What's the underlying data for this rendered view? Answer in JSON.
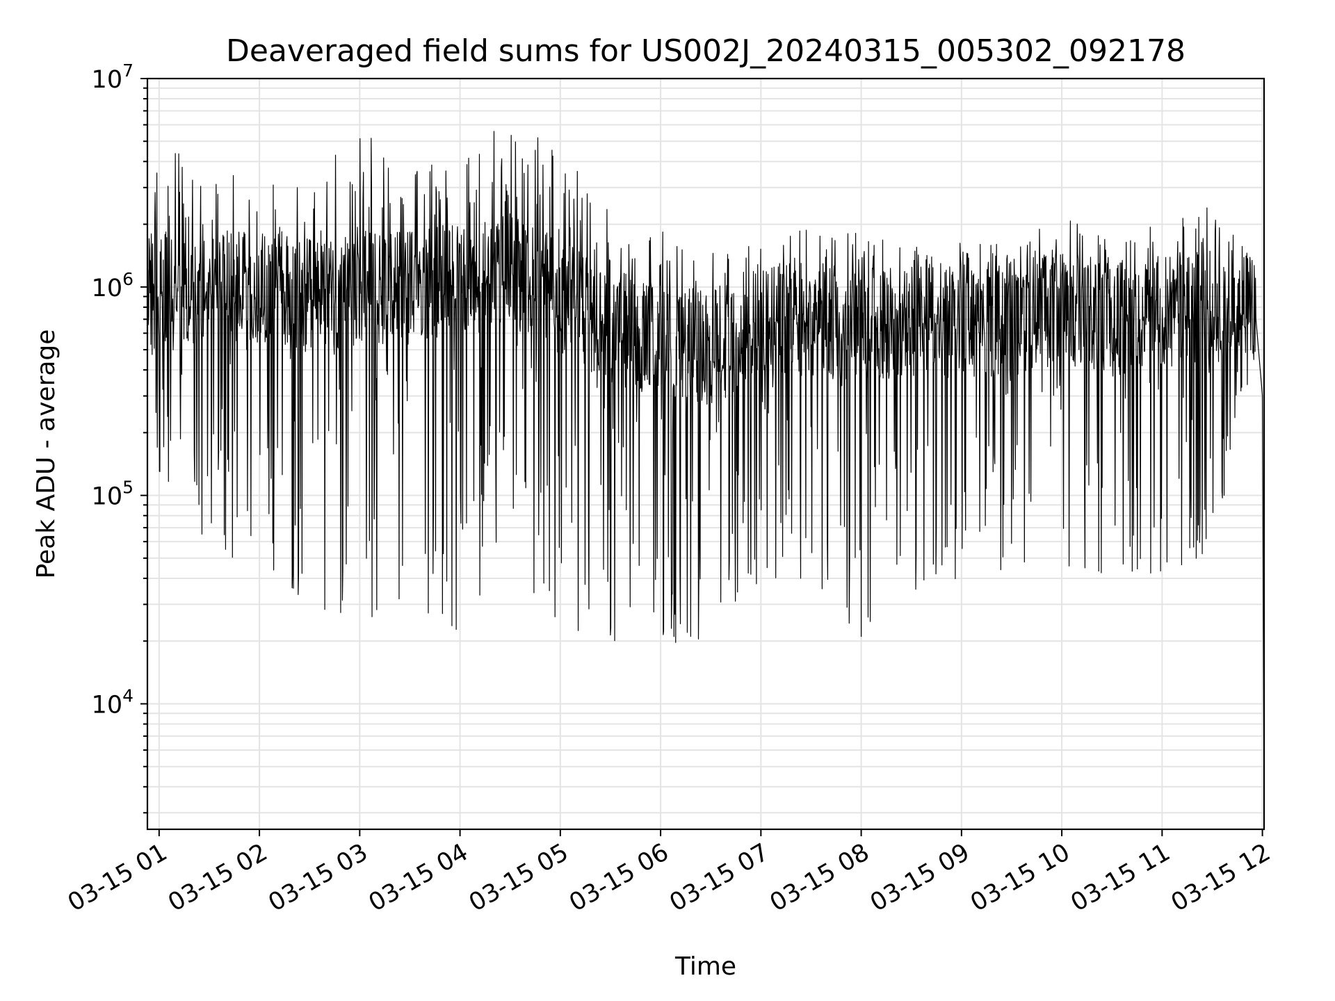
{
  "chart_data": {
    "type": "line",
    "title": "Deaveraged field sums for US002J_20240315_005302_092178",
    "xlabel": "Time",
    "ylabel": "Peak ADU - average",
    "yscale": "log",
    "ylim": [
      2500,
      10000000
    ],
    "xlim": [
      "2024-03-15 00:53",
      "2024-03-15 12:01"
    ],
    "grid": true,
    "line_color": "#000000",
    "x_ticks": [
      {
        "t": "2024-03-15 01:00",
        "label": "03-15 01"
      },
      {
        "t": "2024-03-15 02:00",
        "label": "03-15 02"
      },
      {
        "t": "2024-03-15 03:00",
        "label": "03-15 03"
      },
      {
        "t": "2024-03-15 04:00",
        "label": "03-15 04"
      },
      {
        "t": "2024-03-15 05:00",
        "label": "03-15 05"
      },
      {
        "t": "2024-03-15 06:00",
        "label": "03-15 06"
      },
      {
        "t": "2024-03-15 07:00",
        "label": "03-15 07"
      },
      {
        "t": "2024-03-15 08:00",
        "label": "03-15 08"
      },
      {
        "t": "2024-03-15 09:00",
        "label": "03-15 09"
      },
      {
        "t": "2024-03-15 10:00",
        "label": "03-15 10"
      },
      {
        "t": "2024-03-15 11:00",
        "label": "03-15 11"
      },
      {
        "t": "2024-03-15 12:00",
        "label": "03-15 12"
      }
    ],
    "y_ticks": [
      {
        "value": 10000,
        "base": "10",
        "exp": "4"
      },
      {
        "value": 100000,
        "base": "10",
        "exp": "5"
      },
      {
        "value": 1000000,
        "base": "10",
        "exp": "6"
      },
      {
        "value": 10000000,
        "base": "10",
        "exp": "7"
      }
    ],
    "series": [
      {
        "values_note_free": true,
        "x": [
          "2024-03-15 00:53",
          "2024-03-15 01:00",
          "2024-03-15 01:30",
          "2024-03-15 02:00",
          "2024-03-15 02:30",
          "2024-03-15 03:00",
          "2024-03-15 03:30",
          "2024-03-15 04:00",
          "2024-03-15 04:30",
          "2024-03-15 05:00",
          "2024-03-15 05:30",
          "2024-03-15 06:00",
          "2024-03-15 06:30",
          "2024-03-15 07:00",
          "2024-03-15 07:30",
          "2024-03-15 08:00",
          "2024-03-15 08:30",
          "2024-03-15 09:00",
          "2024-03-15 09:30",
          "2024-03-15 10:00",
          "2024-03-15 10:30",
          "2024-03-15 11:00",
          "2024-03-15 11:30",
          "2024-03-15 11:55",
          "2024-03-15 12:00",
          "2024-03-15 12:01"
        ],
        "peak": [
          2600000,
          4600000,
          4100000,
          3600000,
          4200000,
          5600000,
          4900000,
          5200000,
          6800000,
          4700000,
          2500000,
          1900000,
          1500000,
          1600000,
          2000000,
          1800000,
          1700000,
          1700000,
          1600000,
          2300000,
          1700000,
          2400000,
          2500000,
          1300000,
          500000,
          3200
        ],
        "typical": [
          1100000,
          1000000,
          950000,
          1000000,
          900000,
          1000000,
          1000000,
          1100000,
          1200000,
          900000,
          650000,
          550000,
          500000,
          700000,
          700000,
          650000,
          700000,
          700000,
          700000,
          800000,
          700000,
          750000,
          800000,
          900000,
          300000,
          3200
        ],
        "trough": [
          700000,
          130000,
          55000,
          45000,
          22000,
          25000,
          30000,
          22000,
          50000,
          22000,
          20000,
          20000,
          19000,
          40000,
          40000,
          20000,
          35000,
          40000,
          45000,
          45000,
          40000,
          40000,
          55000,
          450000,
          200000,
          3200
        ]
      }
    ]
  }
}
